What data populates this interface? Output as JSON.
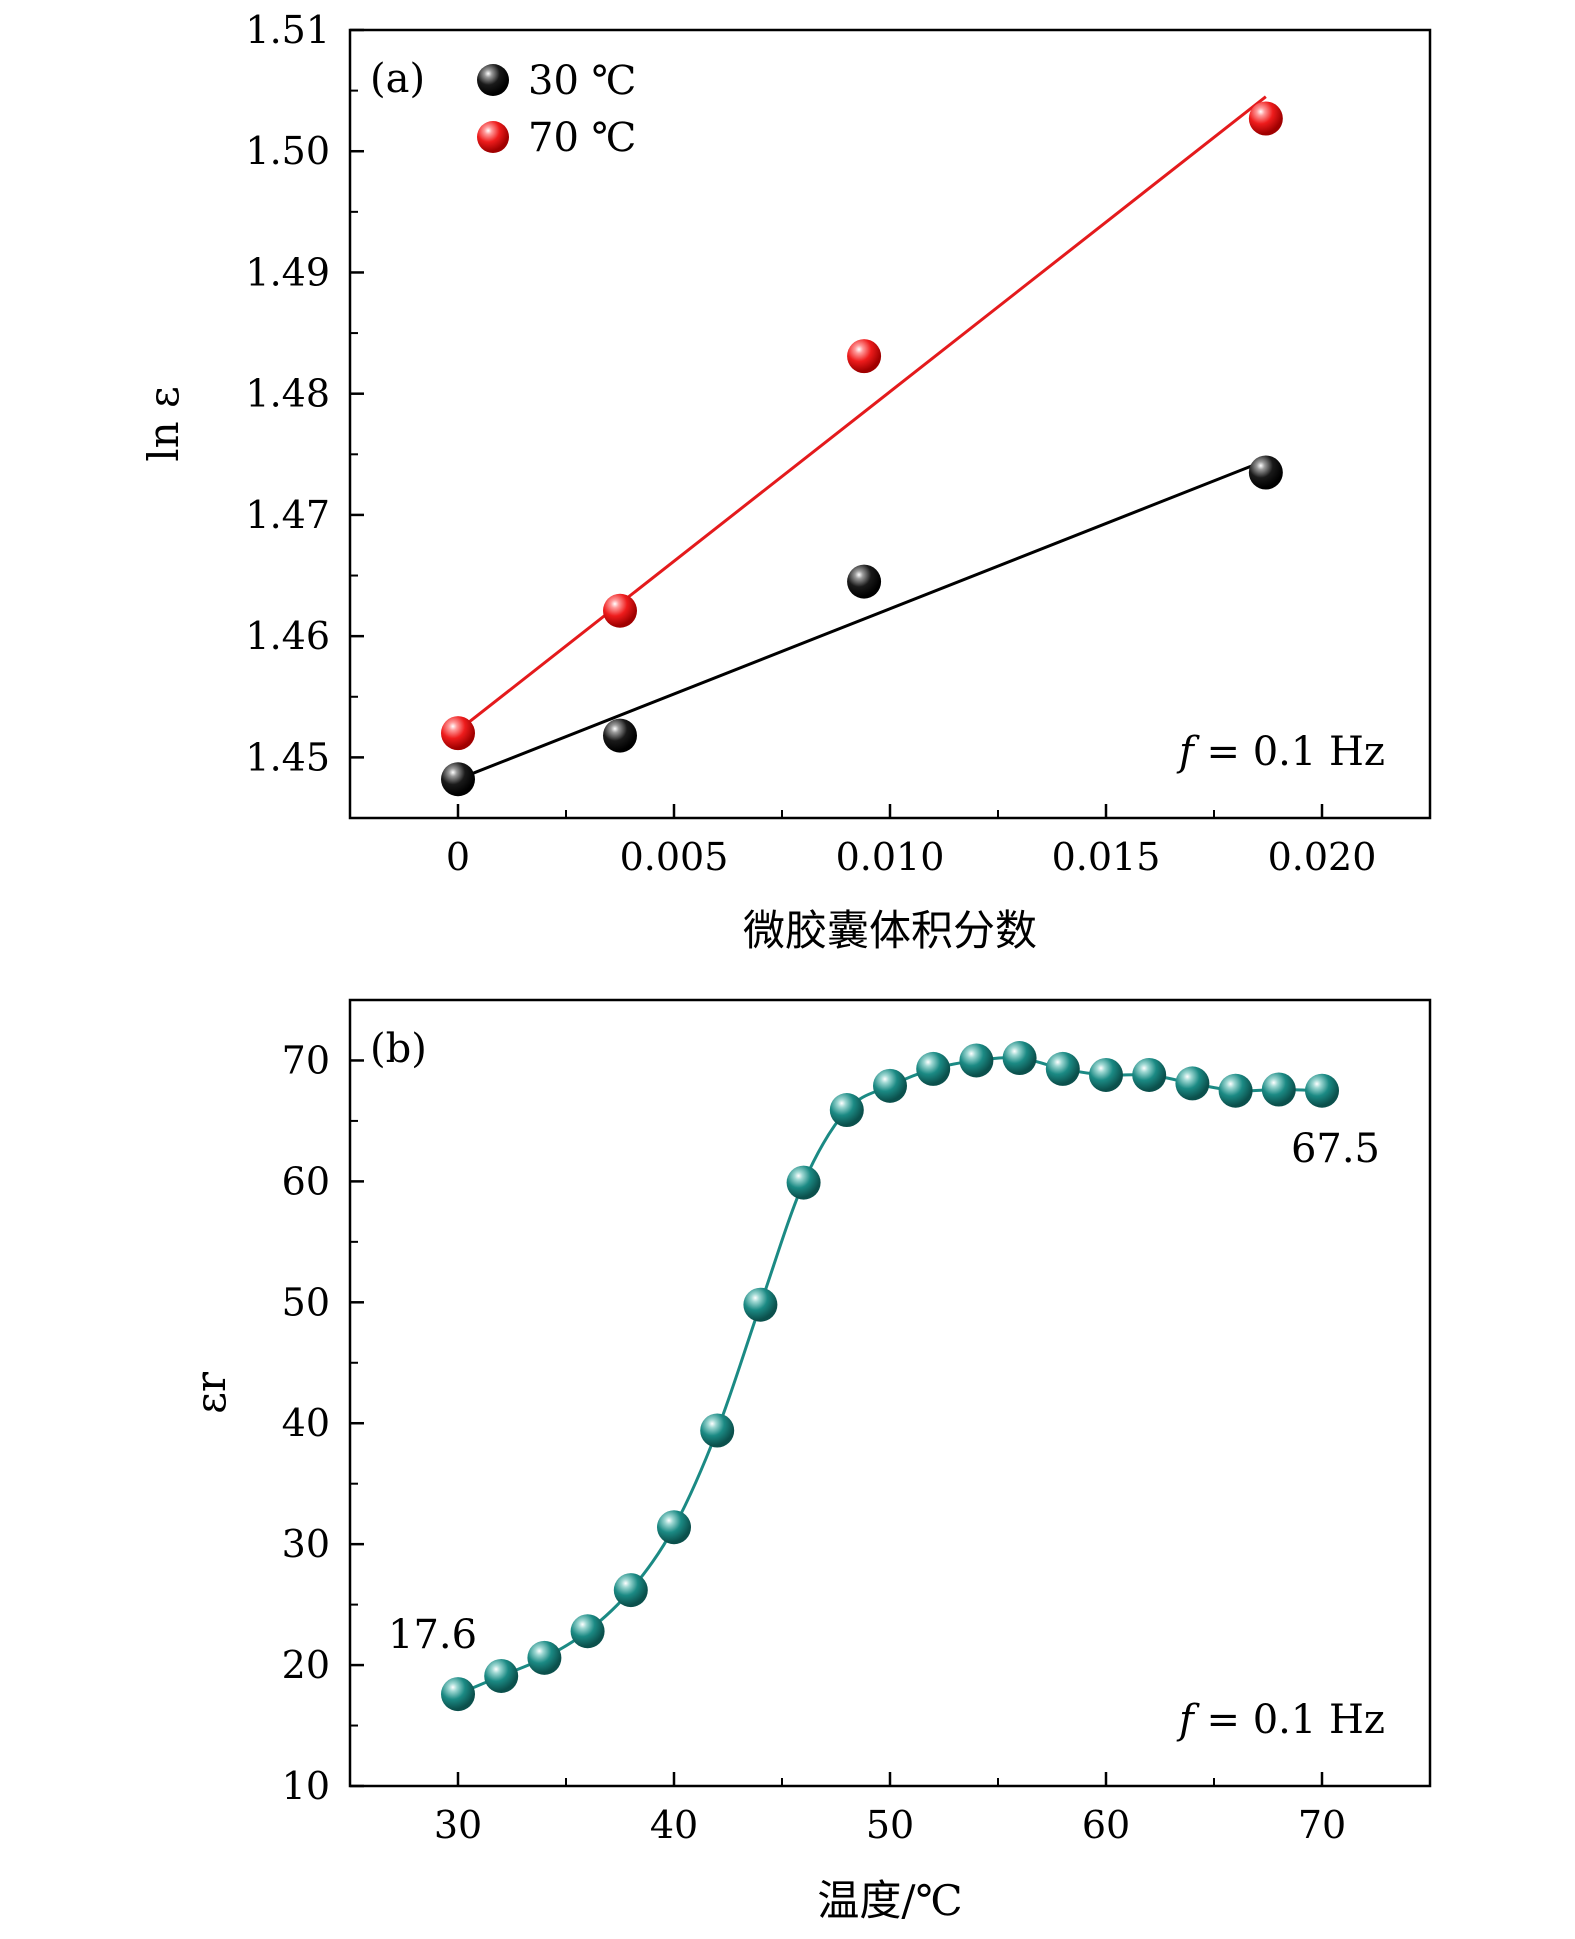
{
  "colors": {
    "series_30": "#000000",
    "series_70": "#e41a1c",
    "series_b": "#1b8a84"
  },
  "chart_data": [
    {
      "type": "scatter",
      "panel_label": "(a)",
      "xlabel": "微胶囊体积分数",
      "ylabel": "ln ε",
      "xlim": [
        -0.0025,
        0.0225
      ],
      "ylim": [
        1.445,
        1.51
      ],
      "x_ticks": [
        0,
        0.005,
        0.01,
        0.015,
        0.02
      ],
      "x_tick_labels": [
        "0",
        "0.005",
        "0.010",
        "0.015",
        "0.020"
      ],
      "y_ticks": [
        1.45,
        1.46,
        1.47,
        1.48,
        1.49,
        1.5,
        1.51
      ],
      "y_tick_labels": [
        "1.45",
        "1.46",
        "1.47",
        "1.48",
        "1.49",
        "1.50",
        "1.51"
      ],
      "legend_position": "top-left",
      "annotation": "f = 0.1 Hz",
      "annotation_parts": [
        "f",
        " = 0.1 Hz"
      ],
      "series": [
        {
          "name": "30 ℃",
          "x": [
            0,
            0.00375,
            0.0094,
            0.0187
          ],
          "y": [
            1.4482,
            1.4518,
            1.4645,
            1.4735
          ],
          "fit": {
            "x": [
              0,
              0.0187
            ],
            "y": [
              1.4482,
              1.4745
            ]
          }
        },
        {
          "name": "70 ℃",
          "x": [
            0,
            0.00375,
            0.0094,
            0.0187
          ],
          "y": [
            1.452,
            1.4621,
            1.4831,
            1.5027
          ],
          "fit": {
            "x": [
              0,
              0.0187
            ],
            "y": [
              1.4522,
              1.5045
            ]
          }
        }
      ]
    },
    {
      "type": "line",
      "panel_label": "(b)",
      "xlabel": "温度/℃",
      "ylabel": "εr",
      "xlim": [
        25,
        75
      ],
      "ylim": [
        10,
        75
      ],
      "x_ticks": [
        30,
        40,
        50,
        60,
        70
      ],
      "x_tick_labels": [
        "30",
        "40",
        "50",
        "60",
        "70"
      ],
      "y_ticks": [
        10,
        20,
        30,
        40,
        50,
        60,
        70
      ],
      "y_tick_labels": [
        "10",
        "20",
        "30",
        "40",
        "50",
        "60",
        "70"
      ],
      "annotation": "f = 0.1 Hz",
      "annotation_parts": [
        "f",
        " = 0.1 Hz"
      ],
      "start_label": "17.6",
      "end_label": "67.5",
      "series": [
        {
          "x": [
            30,
            32,
            34,
            36,
            38,
            40,
            42,
            44,
            46,
            48,
            50,
            52,
            54,
            56,
            58,
            60,
            62,
            64,
            66,
            68,
            70
          ],
          "y": [
            17.6,
            19.1,
            20.6,
            22.8,
            26.2,
            31.4,
            39.4,
            49.8,
            59.9,
            65.9,
            67.9,
            69.3,
            70.0,
            70.2,
            69.3,
            68.8,
            68.8,
            68.1,
            67.5,
            67.6,
            67.5
          ]
        }
      ]
    }
  ]
}
